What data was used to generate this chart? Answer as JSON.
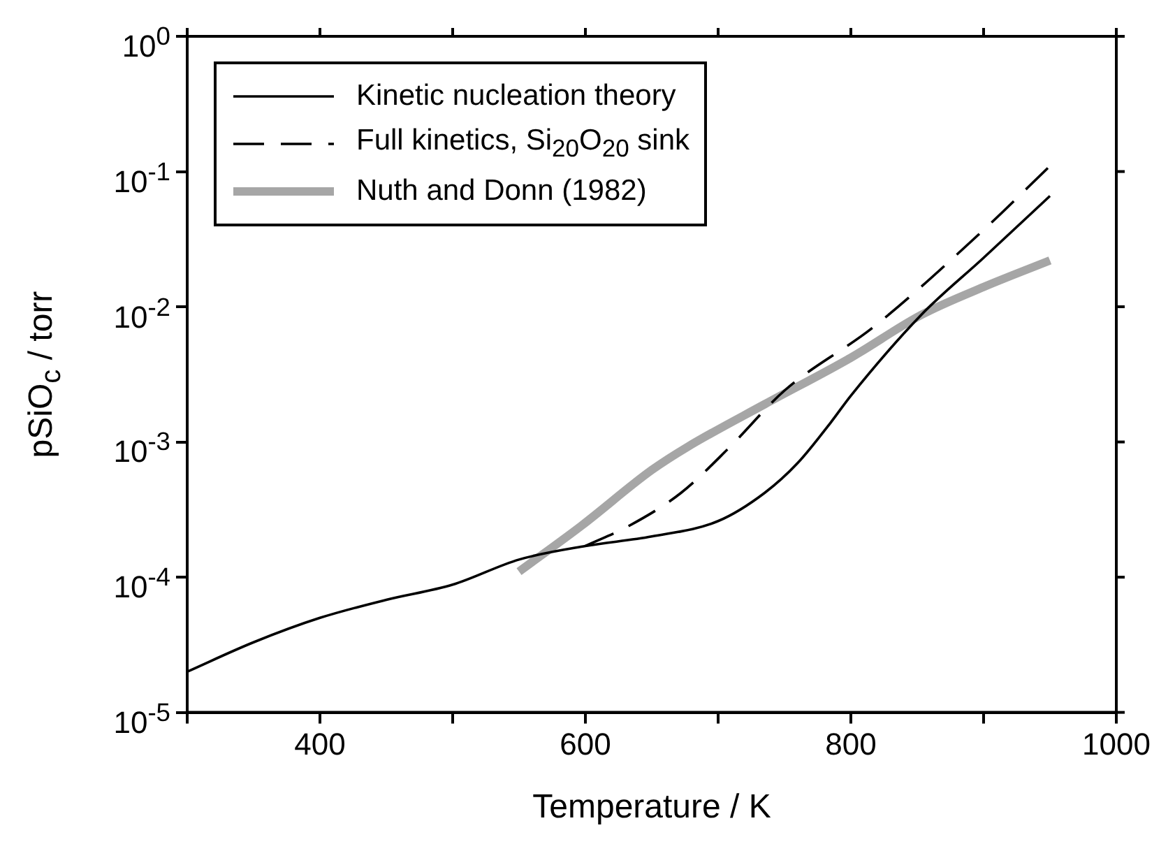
{
  "chart_data": {
    "type": "line",
    "xlabel": "Temperature / K",
    "ylabel": "pSiO$_{c}$ / torr",
    "log": "y",
    "grid": false,
    "legend": "top left",
    "marker": "none",
    "xlim": [
      300,
      1000
    ],
    "xticks": [
      {
        "value": 300,
        "label": null
      },
      400,
      {
        "value": 500,
        "label": null
      },
      600,
      {
        "value": 700,
        "label": null
      },
      800,
      {
        "value": 900,
        "label": null
      },
      1000
    ],
    "ylim": [
      1e-05,
      1
    ],
    "yticks": [
      {
        "value": 1e-05,
        "label": "10$^{-5}$"
      },
      {
        "value": 0.0001,
        "label": "10$^{-4}$"
      },
      {
        "value": 0.001,
        "label": "10$^{-3}$"
      },
      {
        "value": 0.01,
        "label": "10$^{-2}$"
      },
      {
        "value": 0.1,
        "label": "10$^{-1}$"
      },
      {
        "value": 1,
        "label": "10$^{0}$"
      }
    ],
    "series": [
      {
        "name": "Kinetic nucleation theory",
        "color": "#000000",
        "line_style": "solid",
        "x": [
          300,
          350,
          400,
          450,
          500,
          550,
          600,
          650,
          700,
          735,
          760,
          785,
          800,
          853,
          900,
          950
        ],
        "values": [
          2e-05,
          3.3e-05,
          5e-05,
          6.8e-05,
          8.8e-05,
          0.000135,
          0.00017,
          0.0002,
          0.00026,
          0.00042,
          0.0007,
          0.0014,
          0.0022,
          0.0087,
          0.023,
          0.066
        ]
      },
      {
        "name": "Full kinetics, Si$_{20}$O$_{20}$ sink",
        "color": "#000000",
        "line_style": "dashed",
        "x": [
          600,
          633,
          672,
          708,
          750,
          818,
          900,
          950
        ],
        "values": [
          0.00017,
          0.00024,
          0.00042,
          0.0009,
          0.0024,
          0.0072,
          0.037,
          0.11
        ]
      },
      {
        "name": "Nuth and Donn (1982)",
        "color": "#a6a6a6",
        "line_style": "solid",
        "x": [
          550,
          597,
          650,
          677,
          735,
          800,
          853,
          900,
          950
        ],
        "values": [
          0.00011,
          0.00024,
          0.00062,
          0.00092,
          0.0019,
          0.0042,
          0.0087,
          0.014,
          0.022
        ]
      }
    ]
  }
}
